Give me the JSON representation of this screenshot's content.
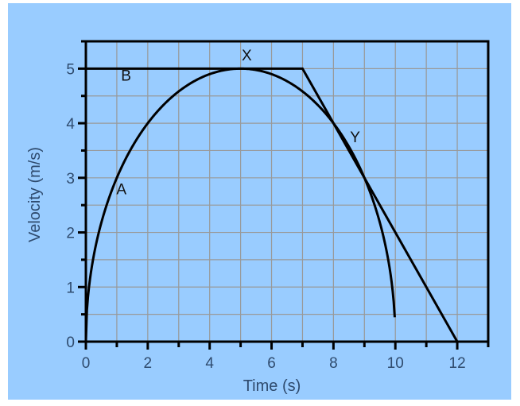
{
  "chart_data": {
    "type": "line",
    "title": "",
    "xlabel": "Time (s)",
    "ylabel": "Velocity  (m/s)",
    "xlim": [
      0,
      13
    ],
    "ylim": [
      0,
      5.5
    ],
    "xticks": [
      0,
      2,
      4,
      6,
      8,
      10,
      12
    ],
    "yticks": [
      0,
      1,
      2,
      3,
      4,
      5
    ],
    "grid": true,
    "grid_x_step": 1,
    "grid_y_step": 0.5,
    "background_color": "#99ccff",
    "line_color": "#000000",
    "series": [
      {
        "name": "A",
        "shape": "semi-ellipse",
        "x": [
          0,
          0.1,
          0.5,
          1,
          2,
          3,
          4,
          5,
          6,
          7,
          8,
          9,
          9.5,
          9.9,
          9.98
        ],
        "y": [
          0,
          0.99,
          2.18,
          3.0,
          4.0,
          4.58,
          4.9,
          5.0,
          4.9,
          4.58,
          4.0,
          3.0,
          2.18,
          0.99,
          0.32
        ]
      },
      {
        "name": "B",
        "x": [
          0,
          7,
          12
        ],
        "y": [
          5,
          5,
          0
        ]
      }
    ],
    "annotations": [
      {
        "text": "X",
        "x": 5.2,
        "y": 5.15
      },
      {
        "text": "Y",
        "x": 8.7,
        "y": 3.65
      },
      {
        "text": "A",
        "x": 1.15,
        "y": 2.7
      },
      {
        "text": "B",
        "x": 1.3,
        "y": 4.78
      }
    ]
  }
}
